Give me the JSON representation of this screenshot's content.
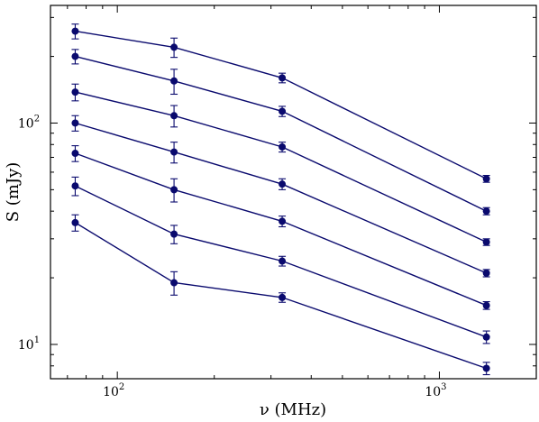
{
  "chart_data": {
    "type": "line",
    "title": "",
    "xlabel": "ν (MHz)",
    "ylabel": "S (mJy)",
    "xscale": "log",
    "yscale": "log",
    "xlim": [
      62,
      2000
    ],
    "ylim": [
      7,
      340
    ],
    "x_ticks": [
      {
        "value": 100,
        "base": "10",
        "exp": "2"
      },
      {
        "value": 1000,
        "base": "10",
        "exp": "3"
      }
    ],
    "y_ticks": [
      {
        "value": 10,
        "base": "10",
        "exp": "1"
      },
      {
        "value": 100,
        "base": "10",
        "exp": "2"
      }
    ],
    "grid": false,
    "legend": "none",
    "color": "#0a0a6e",
    "x": [
      74,
      150,
      325,
      1400
    ],
    "series": [
      {
        "values": [
          260,
          220,
          160,
          56
        ],
        "errors": [
          20,
          22,
          8,
          2
        ]
      },
      {
        "values": [
          200,
          155,
          113,
          40
        ],
        "errors": [
          15,
          20,
          6,
          1.5
        ]
      },
      {
        "values": [
          138,
          108,
          78,
          29
        ],
        "errors": [
          12,
          12,
          4,
          1
        ]
      },
      {
        "values": [
          100,
          74,
          53,
          21
        ],
        "errors": [
          8,
          8,
          3,
          0.8
        ]
      },
      {
        "values": [
          73,
          50,
          36,
          15
        ],
        "errors": [
          6,
          6,
          2,
          0.6
        ]
      },
      {
        "values": [
          52,
          31.5,
          23.8,
          10.8
        ],
        "errors": [
          5,
          3,
          1.2,
          0.7
        ]
      },
      {
        "values": [
          35.5,
          19,
          16.3,
          7.8
        ],
        "errors": [
          3,
          2.3,
          0.8,
          0.5
        ]
      }
    ]
  }
}
